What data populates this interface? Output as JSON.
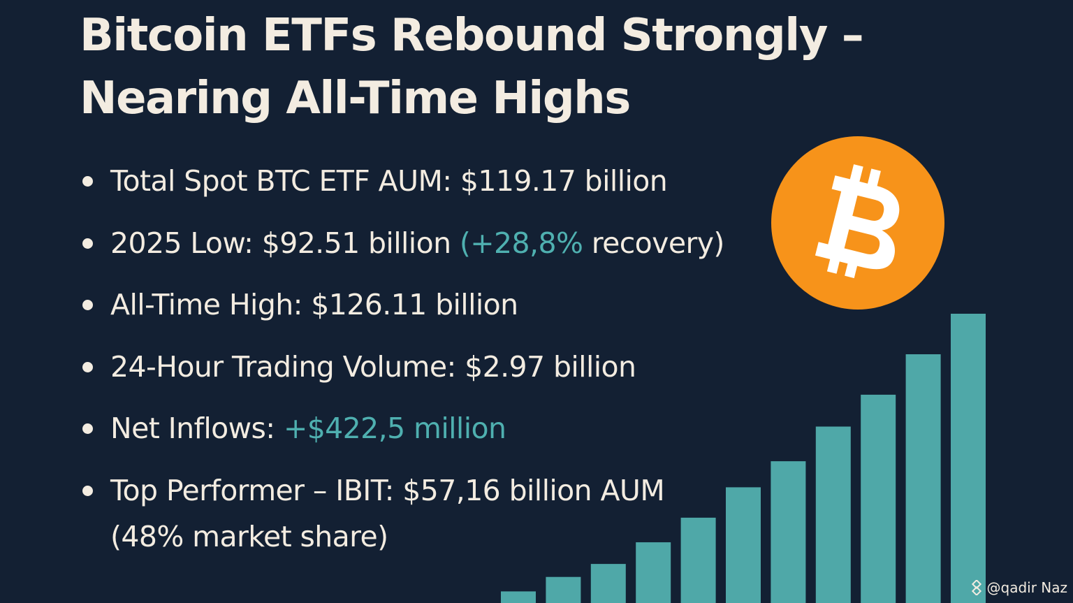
{
  "title": {
    "line1": "Bitcoin ETFs Rebound Strongly –",
    "line2": "Nearing All-Time Highs"
  },
  "bullets": [
    {
      "text": "Total Spot BTC ETF AUM: $119.17 billion"
    },
    {
      "text": "2025 Low: $92.51 billion ",
      "accent": "(+28,8%",
      "suffix": " recovery)"
    },
    {
      "text": "All-Time High: $126.11 billion"
    },
    {
      "text": "24-Hour Trading Volume: $2.97 billion"
    },
    {
      "text": "Net Inflows: ",
      "accent": "+$422,5 million"
    },
    {
      "text": "Top Performer – IBIT: $57,16 billion AUM",
      "line2": "(48% market share)"
    }
  ],
  "coin": {
    "icon": "bitcoin-logo",
    "symbol": "₿",
    "color": "#f7931a"
  },
  "bar_graphic": {
    "icon": "rising-bars",
    "color": "#4fa8a8",
    "relative_values": [
      0.04,
      0.09,
      0.135,
      0.21,
      0.295,
      0.4,
      0.49,
      0.61,
      0.72,
      0.86,
      1.0
    ]
  },
  "watermark": {
    "icon": "binance-square-icon",
    "text": "@qadir Naz"
  },
  "colors": {
    "background": "#132033",
    "text": "#f3ece1",
    "accent": "#4fb0b0"
  }
}
